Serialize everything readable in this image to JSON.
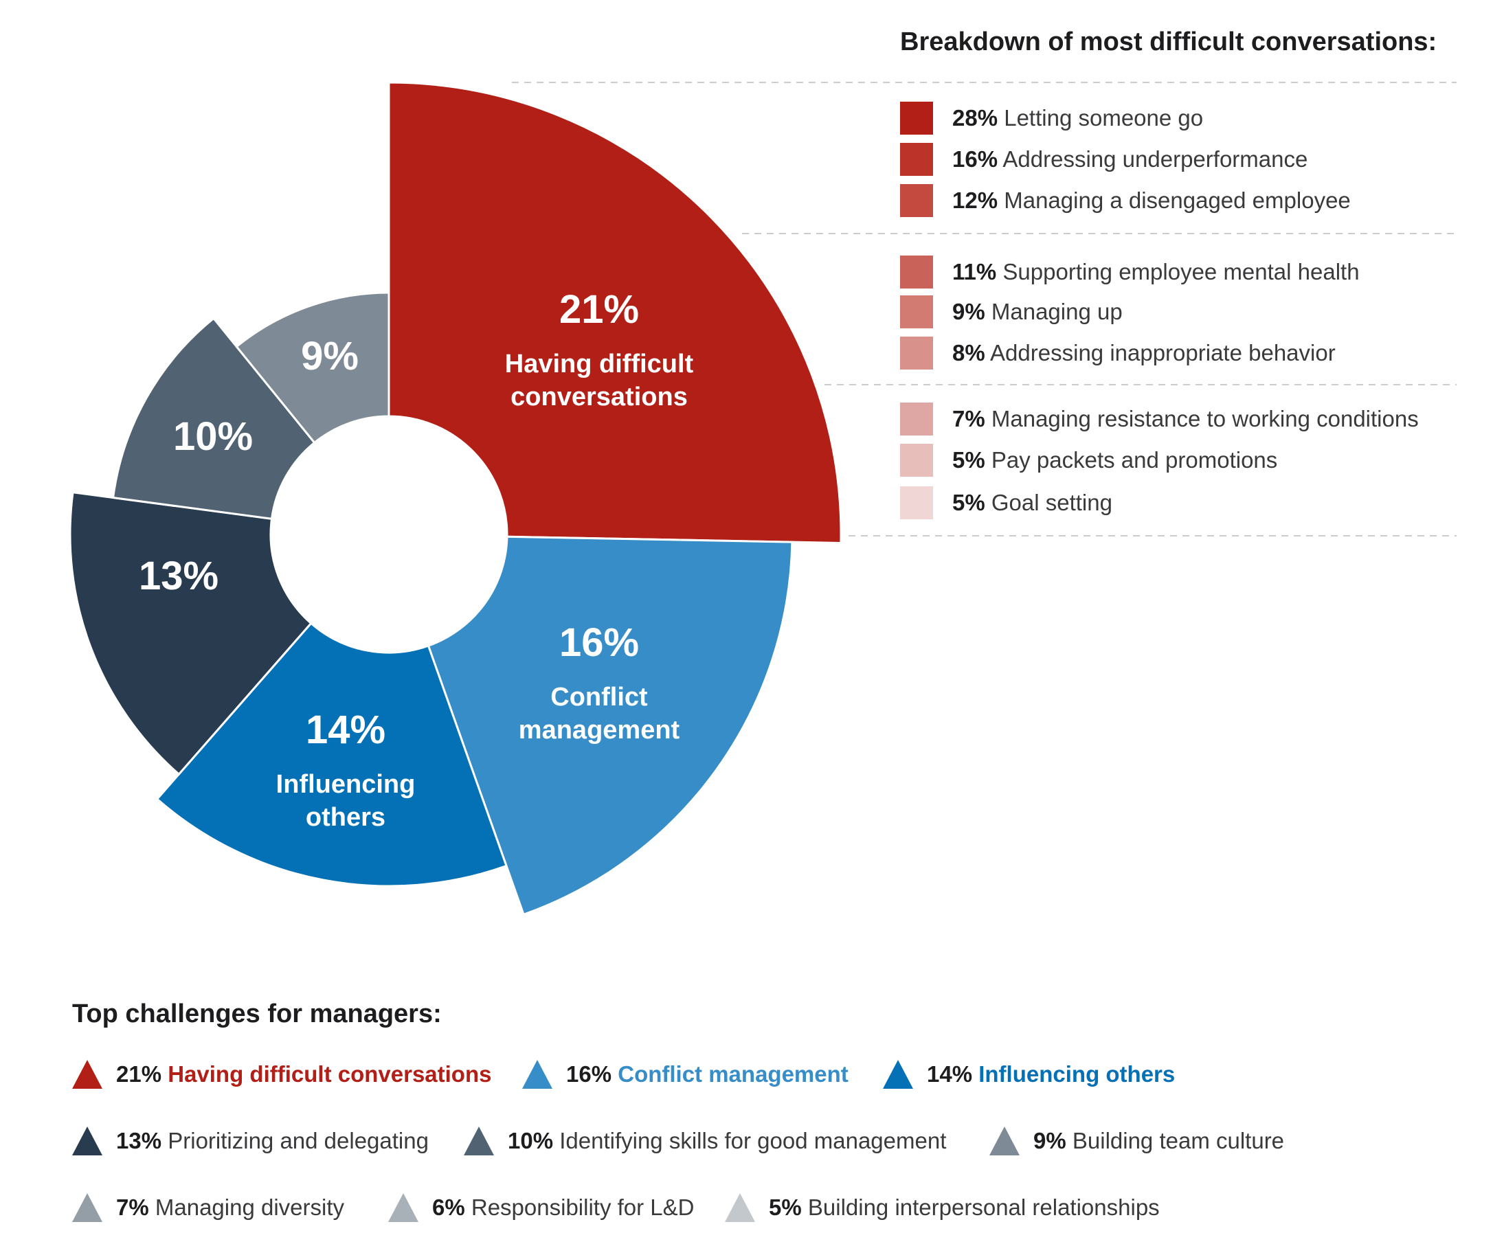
{
  "chart_data": {
    "type": "pie",
    "subtype": "variable-radius donut",
    "start_angle_deg": 0,
    "direction": "clockwise",
    "slices": [
      {
        "value": 21,
        "label_pct": "21%",
        "label": "Having difficult conversations",
        "label_lines": [
          "Having difficult",
          "conversations"
        ],
        "color": "#b11f16"
      },
      {
        "value": 16,
        "label_pct": "16%",
        "label": "Conflict management",
        "label_lines": [
          "Conflict",
          "management"
        ],
        "color": "#368dc8"
      },
      {
        "value": 14,
        "label_pct": "14%",
        "label": "Influencing others",
        "label_lines": [
          "Influencing",
          "others"
        ],
        "color": "#0470b6"
      },
      {
        "value": 13,
        "label_pct": "13%",
        "label": "",
        "label_lines": [],
        "color": "#283b4f"
      },
      {
        "value": 10,
        "label_pct": "10%",
        "label": "",
        "label_lines": [],
        "color": "#516372"
      },
      {
        "value": 9,
        "label_pct": "9%",
        "label": "",
        "label_lines": [],
        "color": "#7e8a95"
      }
    ]
  },
  "breakdown": {
    "title": "Breakdown of most difficult conversations:",
    "items": [
      {
        "pct": "28%",
        "label": "Letting someone go",
        "color": "#b11f16"
      },
      {
        "pct": "16%",
        "label": "Addressing underperformance",
        "color": "#bb3329"
      },
      {
        "pct": "12%",
        "label": "Managing a disengaged employee",
        "color": "#c4493f"
      },
      {
        "pct": "11%",
        "label": "Supporting employee mental health",
        "color": "#c9635a"
      },
      {
        "pct": "9%",
        "label": "Managing up",
        "color": "#d17b73"
      },
      {
        "pct": "8%",
        "label": "Addressing inappropriate behavior",
        "color": "#d8918b"
      },
      {
        "pct": "7%",
        "label": "Managing resistance to working conditions",
        "color": "#dfa7a3"
      },
      {
        "pct": "5%",
        "label": "Pay packets and promotions",
        "color": "#e8bebb"
      },
      {
        "pct": "5%",
        "label": "Goal setting",
        "color": "#f0d6d4"
      }
    ]
  },
  "challenges": {
    "title": "Top challenges for managers:",
    "items": [
      {
        "pct": "21%",
        "label": "Having difficult conversations",
        "color": "#b11f16",
        "label_color": "#b11f16"
      },
      {
        "pct": "16%",
        "label": "Conflict management",
        "color": "#368dc8",
        "label_color": "#368dc8"
      },
      {
        "pct": "14%",
        "label": "Influencing others",
        "color": "#0470b6",
        "label_color": "#0470b6"
      },
      {
        "pct": "13%",
        "label": "Prioritizing and delegating",
        "color": "#283b4f",
        "label_color": "#3a3a3c"
      },
      {
        "pct": "10%",
        "label": "Identifying skills for good management",
        "color": "#516372",
        "label_color": "#3a3a3c"
      },
      {
        "pct": "9%",
        "label": "Building team culture",
        "color": "#7e8a95",
        "label_color": "#3a3a3c"
      },
      {
        "pct": "7%",
        "label": "Managing diversity",
        "color": "#949ea7",
        "label_color": "#3a3a3c"
      },
      {
        "pct": "6%",
        "label": "Responsibility for L&D",
        "color": "#a9b1b8",
        "label_color": "#3a3a3c"
      },
      {
        "pct": "5%",
        "label": "Building interpersonal relationships",
        "color": "#c3c8cd",
        "label_color": "#3a3a3c"
      }
    ]
  }
}
